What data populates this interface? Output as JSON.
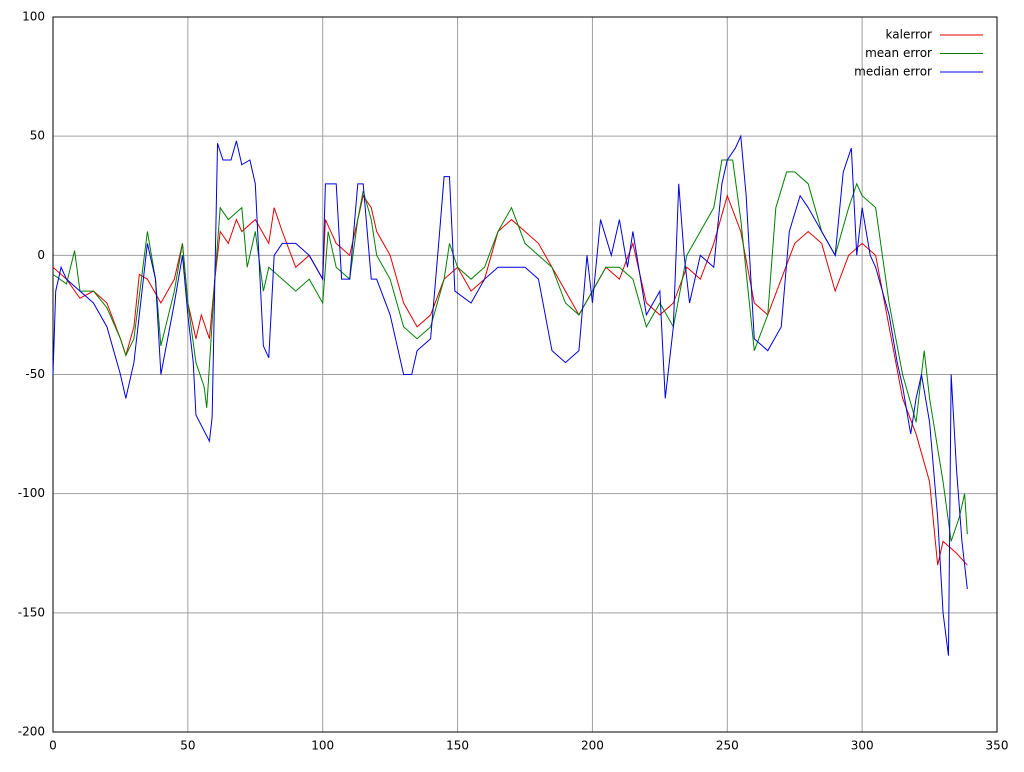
{
  "chart_data": {
    "type": "line",
    "xlim": [
      0,
      350
    ],
    "xticks": [
      0,
      50,
      100,
      150,
      200,
      250,
      300,
      350
    ],
    "ylim": [
      -200,
      100
    ],
    "yticks": [
      -200,
      -150,
      -100,
      -50,
      0,
      50,
      100
    ],
    "grid": true,
    "legend": "top-right",
    "series": [
      {
        "name": "kalerror",
        "color": "#e00000",
        "x": [
          0,
          5,
          10,
          15,
          20,
          25,
          27,
          30,
          32,
          35,
          40,
          45,
          48,
          50,
          53,
          55,
          58,
          60,
          62,
          65,
          68,
          70,
          75,
          80,
          82,
          85,
          90,
          95,
          100,
          101,
          105,
          110,
          115,
          118,
          120,
          125,
          130,
          135,
          140,
          145,
          150,
          155,
          160,
          165,
          170,
          175,
          180,
          185,
          190,
          195,
          200,
          205,
          210,
          215,
          220,
          225,
          230,
          235,
          240,
          245,
          250,
          255,
          260,
          265,
          270,
          275,
          280,
          285,
          290,
          295,
          300,
          305,
          310,
          315,
          320,
          325,
          328,
          330,
          335,
          339
        ],
        "values": [
          -5,
          -10,
          -18,
          -15,
          -20,
          -35,
          -42,
          -30,
          -8,
          -10,
          -20,
          -10,
          5,
          -20,
          -35,
          -25,
          -35,
          -10,
          10,
          5,
          15,
          10,
          15,
          5,
          20,
          10,
          -5,
          0,
          -10,
          15,
          5,
          0,
          25,
          20,
          10,
          0,
          -20,
          -30,
          -25,
          -10,
          -5,
          -15,
          -10,
          10,
          15,
          10,
          5,
          -5,
          -15,
          -25,
          -15,
          -5,
          -10,
          5,
          -20,
          -25,
          -20,
          -5,
          -10,
          5,
          25,
          10,
          -20,
          -25,
          -10,
          5,
          10,
          5,
          -15,
          0,
          5,
          0,
          -30,
          -60,
          -75,
          -95,
          -130,
          -120,
          -125,
          -130
        ]
      },
      {
        "name": "mean error",
        "color": "#008000",
        "x": [
          0,
          5,
          8,
          10,
          15,
          20,
          25,
          27,
          30,
          35,
          38,
          40,
          45,
          48,
          50,
          53,
          56,
          57,
          60,
          62,
          65,
          70,
          72,
          75,
          78,
          80,
          85,
          90,
          95,
          100,
          102,
          105,
          110,
          113,
          115,
          118,
          120,
          125,
          130,
          135,
          140,
          145,
          147,
          150,
          155,
          160,
          165,
          170,
          175,
          180,
          185,
          190,
          195,
          200,
          205,
          210,
          215,
          220,
          225,
          230,
          235,
          240,
          245,
          248,
          252,
          255,
          260,
          265,
          268,
          272,
          275,
          280,
          285,
          290,
          295,
          298,
          300,
          305,
          310,
          315,
          320,
          323,
          325,
          330,
          333,
          336,
          338,
          339
        ],
        "values": [
          -8,
          -12,
          2,
          -15,
          -15,
          -22,
          -35,
          -42,
          -35,
          10,
          -10,
          -38,
          -15,
          5,
          -20,
          -45,
          -55,
          -64,
          -10,
          20,
          15,
          20,
          -5,
          10,
          -15,
          -5,
          -10,
          -15,
          -10,
          -20,
          10,
          -5,
          -10,
          15,
          27,
          15,
          0,
          -10,
          -30,
          -35,
          -30,
          -10,
          5,
          -5,
          -10,
          -5,
          10,
          20,
          5,
          0,
          -5,
          -20,
          -25,
          -15,
          -5,
          -5,
          -10,
          -30,
          -20,
          -30,
          0,
          10,
          20,
          40,
          40,
          15,
          -40,
          -25,
          20,
          35,
          35,
          30,
          10,
          0,
          20,
          30,
          25,
          20,
          -20,
          -50,
          -70,
          -40,
          -60,
          -95,
          -120,
          -110,
          -100,
          -117
        ]
      },
      {
        "name": "median error",
        "color": "#0000e0",
        "x": [
          0,
          1,
          3,
          5,
          10,
          15,
          20,
          25,
          27,
          30,
          35,
          38,
          40,
          45,
          48,
          50,
          52,
          53,
          58,
          59,
          61,
          63,
          66,
          68,
          70,
          73,
          75,
          78,
          80,
          82,
          85,
          90,
          95,
          100,
          101,
          105,
          107,
          110,
          113,
          115,
          118,
          120,
          125,
          130,
          133,
          135,
          140,
          143,
          145,
          147,
          149,
          155,
          160,
          165,
          170,
          175,
          180,
          185,
          190,
          195,
          198,
          200,
          203,
          207,
          210,
          213,
          215,
          220,
          225,
          227,
          230,
          232,
          234,
          236,
          240,
          245,
          248,
          250,
          253,
          255,
          257,
          260,
          265,
          270,
          273,
          277,
          280,
          285,
          290,
          293,
          296,
          298,
          300,
          303,
          305,
          310,
          313,
          315,
          318,
          320,
          322,
          325,
          328,
          330,
          332,
          333,
          335,
          337,
          339
        ],
        "values": [
          -50,
          -15,
          -5,
          -10,
          -15,
          -20,
          -30,
          -50,
          -60,
          -45,
          5,
          -10,
          -50,
          -20,
          0,
          -25,
          -45,
          -67,
          -78,
          -68,
          47,
          40,
          40,
          48,
          38,
          40,
          30,
          -38,
          -43,
          0,
          5,
          5,
          0,
          -10,
          30,
          30,
          -10,
          -10,
          30,
          30,
          -10,
          -10,
          -25,
          -50,
          -50,
          -40,
          -35,
          5,
          33,
          33,
          -15,
          -20,
          -10,
          -5,
          -5,
          -5,
          -10,
          -40,
          -45,
          -40,
          0,
          -20,
          15,
          0,
          15,
          -5,
          10,
          -25,
          -15,
          -60,
          -30,
          30,
          0,
          -20,
          0,
          -5,
          30,
          40,
          45,
          50,
          25,
          -35,
          -40,
          -30,
          10,
          25,
          20,
          10,
          0,
          35,
          45,
          0,
          20,
          0,
          -5,
          -25,
          -45,
          -55,
          -75,
          -60,
          -50,
          -70,
          -110,
          -150,
          -168,
          -50,
          -90,
          -120,
          -140
        ]
      }
    ]
  }
}
